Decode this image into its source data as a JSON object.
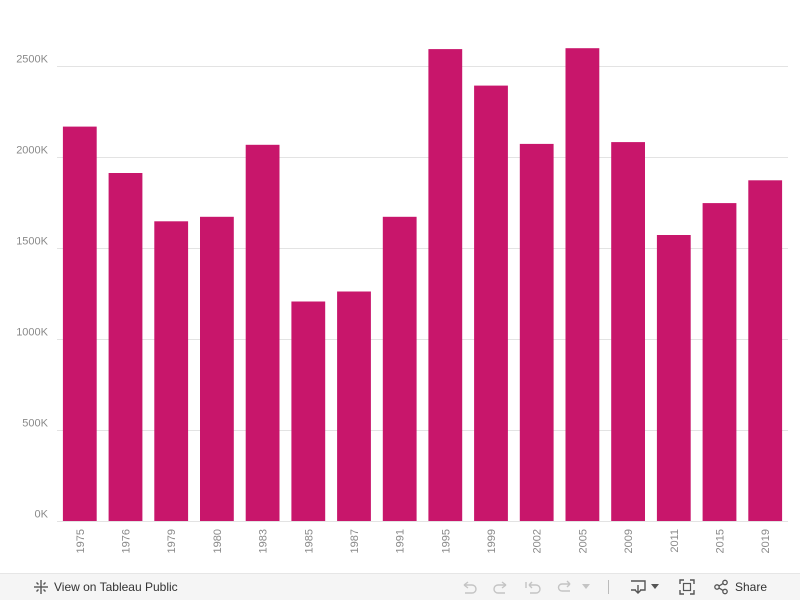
{
  "chart_data": {
    "type": "bar",
    "categories": [
      "1975",
      "1976",
      "1979",
      "1980",
      "1983",
      "1985",
      "1987",
      "1991",
      "1995",
      "1999",
      "2002",
      "2005",
      "2009",
      "2011",
      "2015",
      "2019"
    ],
    "values": [
      2165000,
      1910000,
      1645000,
      1670000,
      2065000,
      1205000,
      1260000,
      1670000,
      2590000,
      2390000,
      2070000,
      2595000,
      2080000,
      1570000,
      1745000,
      1870000
    ],
    "y_ticks": [
      0,
      500000,
      1000000,
      1500000,
      2000000,
      2500000
    ],
    "y_tick_labels": [
      "0K",
      "500K",
      "1000K",
      "1500K",
      "2000K",
      "2500K"
    ],
    "ylim": [
      0,
      2750000
    ],
    "grid": true,
    "title": "",
    "xlabel": "",
    "ylabel": "",
    "bar_color": "#c8166b",
    "grid_color": "#e3e3e3"
  },
  "toolbar": {
    "view_label": "View on Tableau Public",
    "share_label": "Share"
  }
}
